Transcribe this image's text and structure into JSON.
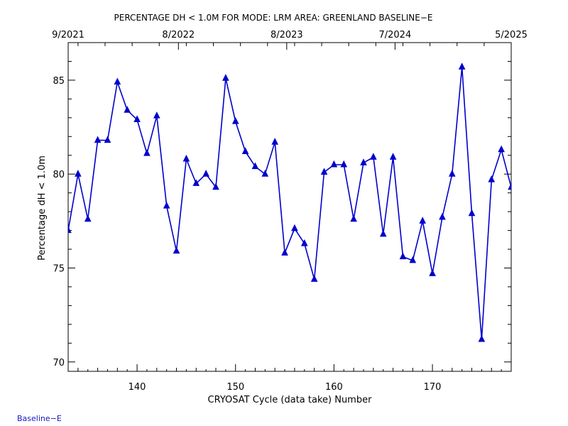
{
  "colors": {
    "background": "#ffffff",
    "axes": "#000000",
    "series": "#0000cc",
    "footer": "#1414c8"
  },
  "footer_label": "Baseline−E",
  "chart_data": {
    "type": "line",
    "title": "PERCENTAGE DH < 1.0M FOR MODE: LRM AREA: GREENLAND BASELINE−E",
    "xlabel": "CRYOSAT Cycle (data take) Number",
    "ylabel": "Percentage dH < 1.0m",
    "xlim": [
      133,
      178
    ],
    "ylim": [
      69.5,
      87
    ],
    "x_ticks": [
      140,
      150,
      160,
      170
    ],
    "y_ticks": [
      70,
      75,
      80,
      85
    ],
    "top_axis_labels": [
      {
        "x": 133,
        "label": "9/2021"
      },
      {
        "x": 144.2,
        "label": "8/2022"
      },
      {
        "x": 155.2,
        "label": "8/2023"
      },
      {
        "x": 166.2,
        "label": "7/2024"
      },
      {
        "x": 178,
        "label": "5/2025"
      }
    ],
    "grid": false,
    "marker": "triangle",
    "series": [
      {
        "x": [
          133,
          134,
          135,
          136,
          137,
          138,
          139,
          140,
          141,
          142,
          143,
          144,
          145,
          146,
          147,
          148,
          149,
          150,
          151,
          152,
          153,
          154,
          155,
          156,
          157,
          158,
          159,
          160,
          161,
          162,
          163,
          164,
          165,
          166,
          167,
          168,
          169,
          170,
          171,
          172,
          173,
          174,
          175,
          176,
          177,
          178
        ],
        "values": [
          77.0,
          80.0,
          77.6,
          81.8,
          81.8,
          84.9,
          83.4,
          82.9,
          81.1,
          83.1,
          78.3,
          75.9,
          80.8,
          79.5,
          80.0,
          79.3,
          85.1,
          82.8,
          81.2,
          80.4,
          80.0,
          81.7,
          75.8,
          77.1,
          76.3,
          74.4,
          80.1,
          80.5,
          80.5,
          77.6,
          80.6,
          80.9,
          76.8,
          80.9,
          75.6,
          75.4,
          77.5,
          74.7,
          77.7,
          80.0,
          85.7,
          77.9,
          71.2,
          79.7,
          81.3,
          79.3
        ]
      }
    ]
  }
}
